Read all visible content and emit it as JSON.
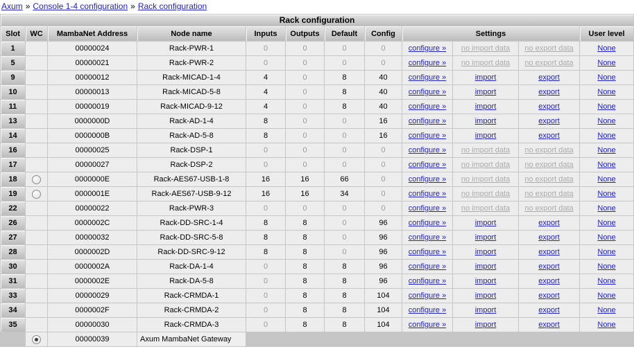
{
  "breadcrumb": {
    "separator": "»",
    "items": [
      {
        "label": "Axum"
      },
      {
        "label": "Console 1-4 configuration"
      },
      {
        "label": "Rack configuration"
      }
    ]
  },
  "table": {
    "title": "Rack configuration",
    "columns": {
      "slot": "Slot",
      "wc": "WC",
      "address": "MambaNet Address",
      "node": "Node name",
      "inputs": "Inputs",
      "outputs": "Outputs",
      "default": "Default",
      "config": "Config",
      "settings": "Settings",
      "user_level": "User level"
    },
    "settings_labels": {
      "configure": "configure »",
      "import": "import",
      "export": "export",
      "no_import": "no import data",
      "no_export": "no export data"
    },
    "rows": [
      {
        "slot": "1",
        "wc": null,
        "address": "00000024",
        "node": "Rack-PWR-1",
        "inputs": "0",
        "outputs": "0",
        "default": "0",
        "config": "0",
        "has_data": false,
        "user_level": "None"
      },
      {
        "slot": "5",
        "wc": null,
        "address": "00000021",
        "node": "Rack-PWR-2",
        "inputs": "0",
        "outputs": "0",
        "default": "0",
        "config": "0",
        "has_data": false,
        "user_level": "None"
      },
      {
        "slot": "9",
        "wc": null,
        "address": "00000012",
        "node": "Rack-MICAD-1-4",
        "inputs": "4",
        "outputs": "0",
        "default": "8",
        "config": "40",
        "has_data": true,
        "user_level": "None"
      },
      {
        "slot": "10",
        "wc": null,
        "address": "00000013",
        "node": "Rack-MICAD-5-8",
        "inputs": "4",
        "outputs": "0",
        "default": "8",
        "config": "40",
        "has_data": true,
        "user_level": "None"
      },
      {
        "slot": "11",
        "wc": null,
        "address": "00000019",
        "node": "Rack-MICAD-9-12",
        "inputs": "4",
        "outputs": "0",
        "default": "8",
        "config": "40",
        "has_data": true,
        "user_level": "None"
      },
      {
        "slot": "13",
        "wc": null,
        "address": "0000000D",
        "node": "Rack-AD-1-4",
        "inputs": "8",
        "outputs": "0",
        "default": "0",
        "config": "16",
        "has_data": true,
        "user_level": "None"
      },
      {
        "slot": "14",
        "wc": null,
        "address": "0000000B",
        "node": "Rack-AD-5-8",
        "inputs": "8",
        "outputs": "0",
        "default": "0",
        "config": "16",
        "has_data": true,
        "user_level": "None"
      },
      {
        "slot": "16",
        "wc": null,
        "address": "00000025",
        "node": "Rack-DSP-1",
        "inputs": "0",
        "outputs": "0",
        "default": "0",
        "config": "0",
        "has_data": false,
        "user_level": "None"
      },
      {
        "slot": "17",
        "wc": null,
        "address": "00000027",
        "node": "Rack-DSP-2",
        "inputs": "0",
        "outputs": "0",
        "default": "0",
        "config": "0",
        "has_data": false,
        "user_level": "None"
      },
      {
        "slot": "18",
        "wc": "unchecked",
        "address": "0000000E",
        "node": "Rack-AES67-USB-1-8",
        "inputs": "16",
        "outputs": "16",
        "default": "66",
        "config": "0",
        "has_data": false,
        "user_level": "None"
      },
      {
        "slot": "19",
        "wc": "unchecked",
        "address": "0000001E",
        "node": "Rack-AES67-USB-9-12",
        "inputs": "16",
        "outputs": "16",
        "default": "34",
        "config": "0",
        "has_data": false,
        "user_level": "None"
      },
      {
        "slot": "22",
        "wc": null,
        "address": "00000022",
        "node": "Rack-PWR-3",
        "inputs": "0",
        "outputs": "0",
        "default": "0",
        "config": "0",
        "has_data": false,
        "user_level": "None"
      },
      {
        "slot": "26",
        "wc": null,
        "address": "0000002C",
        "node": "Rack-DD-SRC-1-4",
        "inputs": "8",
        "outputs": "8",
        "default": "0",
        "config": "96",
        "has_data": true,
        "user_level": "None"
      },
      {
        "slot": "27",
        "wc": null,
        "address": "00000032",
        "node": "Rack-DD-SRC-5-8",
        "inputs": "8",
        "outputs": "8",
        "default": "0",
        "config": "96",
        "has_data": true,
        "user_level": "None"
      },
      {
        "slot": "28",
        "wc": null,
        "address": "0000002D",
        "node": "Rack-DD-SRC-9-12",
        "inputs": "8",
        "outputs": "8",
        "default": "0",
        "config": "96",
        "has_data": true,
        "user_level": "None"
      },
      {
        "slot": "30",
        "wc": null,
        "address": "0000002A",
        "node": "Rack-DA-1-4",
        "inputs": "0",
        "outputs": "8",
        "default": "8",
        "config": "96",
        "has_data": true,
        "user_level": "None"
      },
      {
        "slot": "31",
        "wc": null,
        "address": "0000002E",
        "node": "Rack-DA-5-8",
        "inputs": "0",
        "outputs": "8",
        "default": "8",
        "config": "96",
        "has_data": true,
        "user_level": "None"
      },
      {
        "slot": "33",
        "wc": null,
        "address": "00000029",
        "node": "Rack-CRMDA-1",
        "inputs": "0",
        "outputs": "8",
        "default": "8",
        "config": "104",
        "has_data": true,
        "user_level": "None"
      },
      {
        "slot": "34",
        "wc": null,
        "address": "0000002F",
        "node": "Rack-CRMDA-2",
        "inputs": "0",
        "outputs": "8",
        "default": "8",
        "config": "104",
        "has_data": true,
        "user_level": "None"
      },
      {
        "slot": "35",
        "wc": null,
        "address": "00000030",
        "node": "Rack-CRMDA-3",
        "inputs": "0",
        "outputs": "8",
        "default": "8",
        "config": "104",
        "has_data": true,
        "user_level": "None"
      }
    ],
    "gateway_row": {
      "wc": "checked",
      "address": "00000039",
      "node_name_value": "Axum MambaNet Gateway"
    }
  },
  "colors": {
    "link_blue": "#2121cc",
    "disabled_gray": "#ababab",
    "zero_gray": "#9a9a9a",
    "cell_bg": "#ededed",
    "grid_bg": "#c6c6c6"
  }
}
